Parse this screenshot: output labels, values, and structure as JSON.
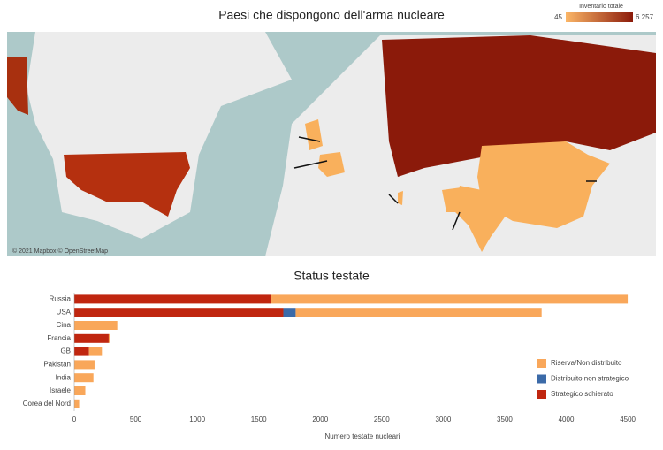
{
  "map": {
    "title": "Paesi che dispongono dell'arma nucleare",
    "legend": {
      "title": "Inventario totale",
      "min": 45,
      "max": {
        "value": 6257,
        "label": "6.257"
      },
      "colors": [
        "#fbb667",
        "#8b1a0a"
      ]
    },
    "attribution": "© 2021 Mapbox © OpenStreetMap"
  },
  "chart_data": {
    "type": "bar",
    "orientation": "horizontal",
    "stacked": true,
    "title": "Status testate",
    "xlabel": "Numero testate nucleari",
    "categories": [
      "Russia",
      "USA",
      "Cina",
      "Francia",
      "GB",
      "Pakistan",
      "India",
      "Israele",
      "Corea del Nord"
    ],
    "series": [
      {
        "name": "Strategico schierato",
        "color": "#c0260f",
        "values": [
          1600,
          1700,
          0,
          280,
          120,
          0,
          0,
          0,
          0
        ]
      },
      {
        "name": "Distribuito  non strategico",
        "color": "#3b6aa8",
        "values": [
          0,
          100,
          0,
          0,
          0,
          0,
          0,
          0,
          0
        ]
      },
      {
        "name": "Riserva/Non distribuito",
        "color": "#f9a75a",
        "values": [
          2900,
          2000,
          350,
          10,
          105,
          165,
          156,
          90,
          40
        ]
      }
    ],
    "xlim": [
      0,
      4600
    ],
    "xticks": [
      0,
      500,
      1000,
      1500,
      2000,
      2500,
      3000,
      3500,
      4000,
      4500
    ],
    "grid": false,
    "legend_position": "lower right"
  }
}
